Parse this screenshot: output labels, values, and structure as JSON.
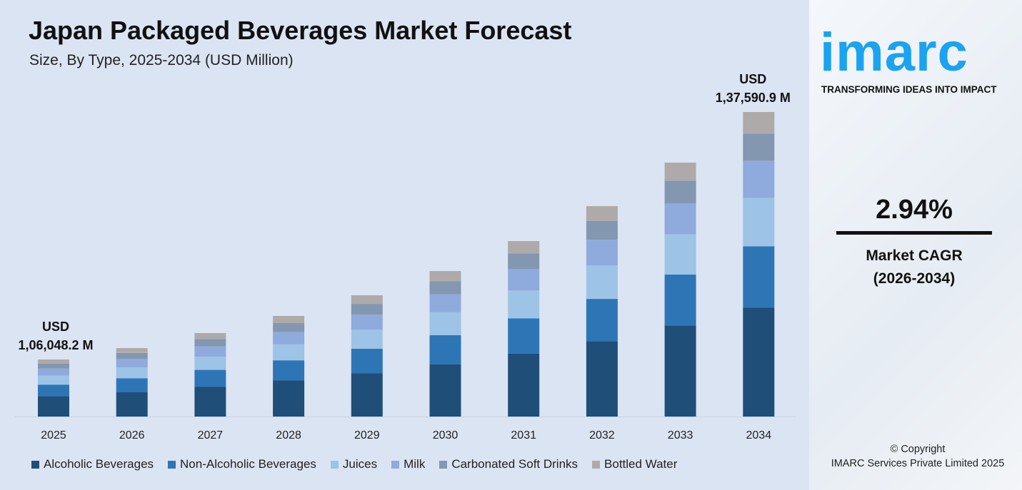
{
  "chart_data": {
    "type": "bar",
    "stacked": true,
    "title": "Japan Packaged Beverages Market Forecast",
    "subtitle": "Size, By Type, 2025-2034 (USD Million)",
    "categories": [
      "2025",
      "2026",
      "2027",
      "2028",
      "2029",
      "2030",
      "2031",
      "2032",
      "2033",
      "2034"
    ],
    "series": [
      {
        "name": "Alcoholic Beverages",
        "color": "#1f4e79",
        "values": [
          37965,
          38486,
          39170,
          39950,
          40894,
          42001,
          43367,
          44962,
          46947,
          49258
        ]
      },
      {
        "name": "Non-Alcoholic Beverages",
        "color": "#2e75b6",
        "values": [
          21316,
          21608,
          21992,
          22430,
          22960,
          23581,
          24349,
          25244,
          26358,
          27656
        ]
      },
      {
        "name": "Juices",
        "color": "#9dc3e6",
        "values": [
          16862,
          17093,
          17397,
          17743,
          18162,
          18654,
          19261,
          19969,
          20851,
          21877
        ]
      },
      {
        "name": "Milk",
        "color": "#8faadc",
        "values": [
          12938,
          13115,
          13348,
          13614,
          13936,
          14313,
          14779,
          15322,
          15999,
          16786
        ]
      },
      {
        "name": "Carbonated Soft Drinks",
        "color": "#8497b0",
        "values": [
          9438,
          9568,
          9738,
          9932,
          10166,
          10441,
          10781,
          11178,
          11671,
          12246
        ]
      },
      {
        "name": "Bottled Water",
        "color": "#aeaaaa",
        "values": [
          7529,
          7633,
          7768,
          7923,
          8110,
          8330,
          8600,
          8917,
          9310,
          9768
        ]
      }
    ],
    "annotations": [
      {
        "category": "2025",
        "line1": "USD",
        "line2": "1,06,048.2 M"
      },
      {
        "category": "2034",
        "line1": "USD",
        "line2": "1,37,590.9 M"
      }
    ],
    "legend": "bottom",
    "grid": false,
    "yaxis_visible": false
  },
  "brand": {
    "logo": "imarc",
    "tagline": "TRANSFORMING IDEAS INTO IMPACT",
    "color": "#1aa3f0"
  },
  "cagr": {
    "value": "2.94%",
    "label": "Market CAGR",
    "period": "(2026-2034)"
  },
  "copyright": {
    "line1": "© Copyright",
    "line2": "IMARC Services Private Limited 2025"
  }
}
